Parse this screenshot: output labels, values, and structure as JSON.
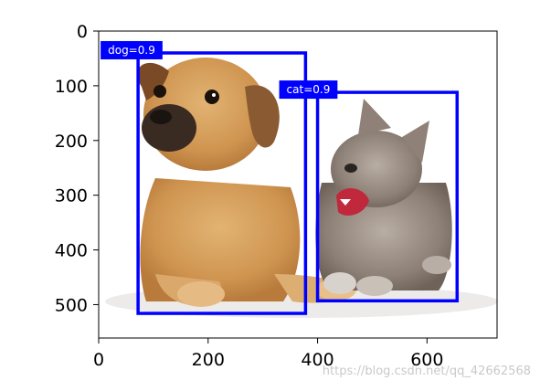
{
  "chart_data": {
    "type": "image_with_bounding_boxes",
    "image_width": 728,
    "image_height": 561,
    "xlim": [
      0,
      728
    ],
    "ylim": [
      561,
      0
    ],
    "xticks": [
      0,
      200,
      400,
      600
    ],
    "yticks": [
      0,
      100,
      200,
      300,
      400,
      500
    ],
    "xtick_labels": [
      "0",
      "200",
      "400",
      "600"
    ],
    "ytick_labels": [
      "0",
      "100",
      "200",
      "300",
      "400",
      "500"
    ],
    "image_subject": "puppy-and-kitten-photo",
    "box_color": "#0000ff",
    "boxes": [
      {
        "label": "dog=0.9",
        "x_min": 72,
        "y_min": 40,
        "x_max": 378,
        "y_max": 516
      },
      {
        "label": "cat=0.9",
        "x_min": 400,
        "y_min": 112,
        "x_max": 655,
        "y_max": 493
      }
    ]
  },
  "watermark": "https://blog.csdn.net/qq_42662568"
}
